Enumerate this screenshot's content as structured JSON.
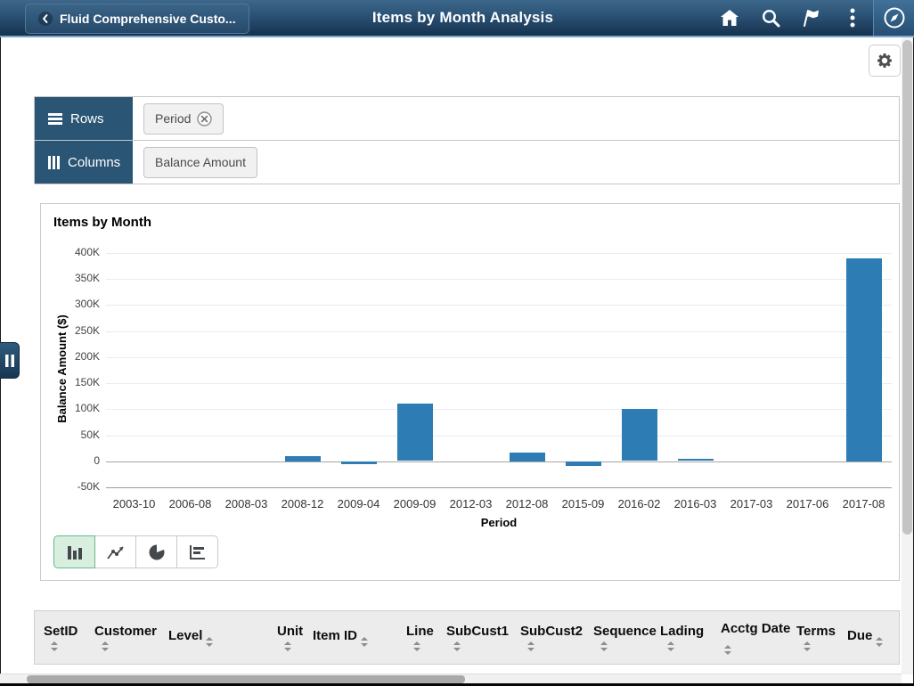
{
  "header": {
    "back_label": "Fluid Comprehensive Custo...",
    "title": "Items by Month Analysis",
    "icons": [
      "back-chevron-icon",
      "home-icon",
      "search-icon",
      "flag-icon",
      "kebab-menu-icon",
      "navbar-compass-icon"
    ]
  },
  "toolbar": {
    "settings_icon": "gear-icon"
  },
  "pivot": {
    "rows_label": "Rows",
    "rows_icon": "hamburger-icon",
    "rows_chips": [
      {
        "label": "Period",
        "removable": true,
        "remove_icon": "circle-x-icon"
      }
    ],
    "columns_label": "Columns",
    "columns_icon": "vertical-bars-icon",
    "columns_chips": [
      {
        "label": "Balance Amount",
        "removable": false
      }
    ]
  },
  "chart_data": {
    "type": "bar",
    "title": "Items by Month",
    "xlabel": "Period",
    "ylabel": "Balance Amount ($)",
    "categories": [
      "2003-10",
      "2006-08",
      "2008-03",
      "2008-12",
      "2009-04",
      "2009-09",
      "2012-03",
      "2012-08",
      "2015-09",
      "2016-02",
      "2016-03",
      "2017-03",
      "2017-06",
      "2017-08"
    ],
    "values": [
      0,
      0,
      0,
      10000,
      -5000,
      110000,
      0,
      17000,
      -8000,
      100000,
      4000,
      0,
      0,
      390000
    ],
    "ylim": [
      -50000,
      400000
    ],
    "ytick_step": 50000,
    "ytick_labels": [
      "400K",
      "350K",
      "300K",
      "250K",
      "200K",
      "150K",
      "100K",
      "50K",
      "0",
      "-50K"
    ],
    "grid": true,
    "legend": false,
    "bar_color": "#2d7db4"
  },
  "chart_type_switcher": {
    "selected": "bar",
    "options": [
      "bar",
      "line",
      "pie",
      "horizontal-bar"
    ]
  },
  "table": {
    "columns": [
      {
        "label": "SetID",
        "sortable": true,
        "sort_inline": false
      },
      {
        "label": "Customer",
        "sortable": true,
        "sort_inline": false
      },
      {
        "label": "Level",
        "sortable": true,
        "sort_inline": true
      },
      {
        "label": "Unit",
        "sortable": true,
        "sort_inline": false
      },
      {
        "label": "Item ID",
        "sortable": true,
        "sort_inline": true
      },
      {
        "label": "Line",
        "sortable": true,
        "sort_inline": false
      },
      {
        "label": "SubCust1",
        "sortable": true,
        "sort_inline": false
      },
      {
        "label": "SubCust2",
        "sortable": true,
        "sort_inline": false
      },
      {
        "label": "Sequence",
        "sortable": true,
        "sort_inline": false
      },
      {
        "label": "Lading",
        "sortable": true,
        "sort_inline": false
      },
      {
        "label": "Acctg Date",
        "sortable": true,
        "sort_inline": true
      },
      {
        "label": "Terms",
        "sortable": true,
        "sort_inline": false
      },
      {
        "label": "Due",
        "sortable": true,
        "sort_inline": true
      }
    ]
  },
  "theme": {
    "header_bg": "#2a5174",
    "header_underline": "#7ba7cb",
    "pivot_tab_bg": "#2a5574",
    "chip_bg": "#f1f1f1",
    "bar_color": "#2d7db4",
    "selected_chart_button_bg": "#d8efdf",
    "selected_chart_button_border": "#67b98b",
    "grid_band_bg": "#ececec"
  }
}
